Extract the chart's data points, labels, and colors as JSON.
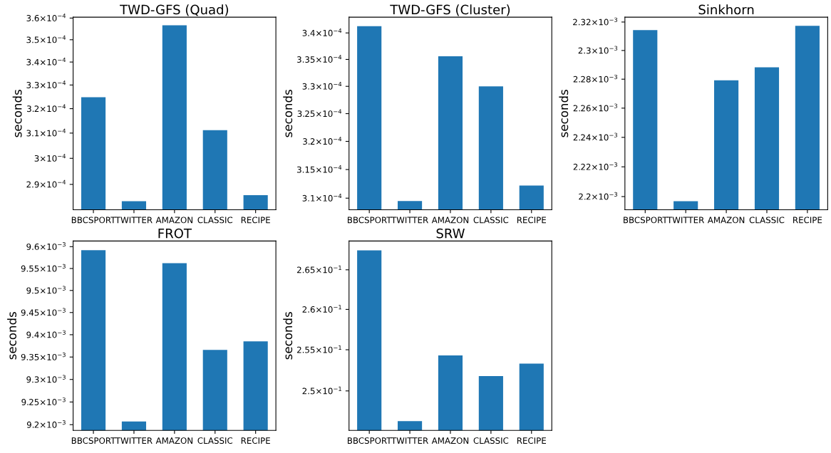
{
  "chart_data": [
    {
      "type": "bar",
      "title": "TWD-GFS (Quad)",
      "ylabel": "seconds",
      "categories": [
        "BBCSPORT",
        "TWITTER",
        "AMAZON",
        "CLASSIC",
        "RECIPE"
      ],
      "values": [
        0.0003248,
        0.0002837,
        0.0003566,
        0.0003112,
        0.000286
      ],
      "color": "#1f77b4",
      "log": true,
      "grid": false,
      "ylim": [
        0.0002806,
        0.0003604
      ],
      "yticks": [
        {
          "value": 0.00029,
          "label": "2.9×10$^{−4}$"
        },
        {
          "value": 0.0003,
          "label": "3×10$^{−4}$"
        },
        {
          "value": 0.00031,
          "label": "3.1×10$^{−4}$"
        },
        {
          "value": 0.00032,
          "label": "3.2×10$^{−4}$"
        },
        {
          "value": 0.00033,
          "label": "3.3×10$^{−4}$"
        },
        {
          "value": 0.00034,
          "label": "3.4×10$^{−4}$"
        },
        {
          "value": 0.00035,
          "label": "3.5×10$^{−4}$"
        },
        {
          "value": 0.00036,
          "label": "3.6×10$^{−4}$"
        }
      ]
    },
    {
      "type": "bar",
      "title": "TWD-GFS (Cluster)",
      "ylabel": "seconds",
      "categories": [
        "BBCSPORT",
        "TWITTER",
        "AMAZON",
        "CLASSIC",
        "RECIPE"
      ],
      "values": [
        0.0003413,
        0.0003095,
        0.0003356,
        0.00033,
        0.0003122
      ],
      "color": "#1f77b4",
      "log": true,
      "grid": false,
      "ylim": [
        0.000308,
        0.000343
      ],
      "yticks": [
        {
          "value": 0.00031,
          "label": "3.1×10$^{−4}$"
        },
        {
          "value": 0.000315,
          "label": "3.15×10$^{−4}$"
        },
        {
          "value": 0.00032,
          "label": "3.2×10$^{−4}$"
        },
        {
          "value": 0.000325,
          "label": "3.25×10$^{−4}$"
        },
        {
          "value": 0.00033,
          "label": "3.3×10$^{−4}$"
        },
        {
          "value": 0.000335,
          "label": "3.35×10$^{−4}$"
        },
        {
          "value": 0.00034,
          "label": "3.4×10$^{−4}$"
        }
      ]
    },
    {
      "type": "bar",
      "title": "Sinkhorn",
      "ylabel": "seconds",
      "categories": [
        "BBCSPORT",
        "TWITTER",
        "AMAZON",
        "CLASSIC",
        "RECIPE"
      ],
      "values": [
        0.0023143,
        0.0021969,
        0.0022792,
        0.0022883,
        0.0023173
      ],
      "color": "#1f77b4",
      "log": true,
      "grid": false,
      "ylim": [
        0.0021912,
        0.0023234
      ],
      "yticks": [
        {
          "value": 0.0022,
          "label": "2.2×10$^{−3}$"
        },
        {
          "value": 0.00222,
          "label": "2.22×10$^{−3}$"
        },
        {
          "value": 0.00224,
          "label": "2.24×10$^{−3}$"
        },
        {
          "value": 0.00226,
          "label": "2.26×10$^{−3}$"
        },
        {
          "value": 0.00228,
          "label": "2.28×10$^{−3}$"
        },
        {
          "value": 0.0023,
          "label": "2.3×10$^{−3}$"
        },
        {
          "value": 0.00232,
          "label": "2.32×10$^{−3}$"
        }
      ]
    },
    {
      "type": "bar",
      "title": "FROT",
      "ylabel": "seconds",
      "categories": [
        "BBCSPORT",
        "TWITTER",
        "AMAZON",
        "CLASSIC",
        "RECIPE"
      ],
      "values": [
        0.009592,
        0.009207,
        0.009562,
        0.009366,
        0.009385
      ],
      "color": "#1f77b4",
      "log": true,
      "grid": false,
      "ylim": [
        0.0091875,
        0.009613
      ],
      "yticks": [
        {
          "value": 0.0092,
          "label": "9.2×10$^{−3}$"
        },
        {
          "value": 0.00925,
          "label": "9.25×10$^{−3}$"
        },
        {
          "value": 0.0093,
          "label": "9.3×10$^{−3}$"
        },
        {
          "value": 0.00935,
          "label": "9.35×10$^{−3}$"
        },
        {
          "value": 0.0094,
          "label": "9.4×10$^{−3}$"
        },
        {
          "value": 0.00945,
          "label": "9.45×10$^{−3}$"
        },
        {
          "value": 0.0095,
          "label": "9.5×10$^{−3}$"
        },
        {
          "value": 0.00955,
          "label": "9.55×10$^{−3}$"
        },
        {
          "value": 0.0096,
          "label": "9.6×10$^{−3}$"
        }
      ]
    },
    {
      "type": "bar",
      "title": "SRW",
      "ylabel": "seconds",
      "categories": [
        "BBCSPORT",
        "TWITTER",
        "AMAZON",
        "CLASSIC",
        "RECIPE"
      ],
      "values": [
        0.2675,
        0.2464,
        0.2543,
        0.2518,
        0.2533
      ],
      "color": "#1f77b4",
      "log": true,
      "grid": false,
      "ylim": [
        0.2453,
        0.2687
      ],
      "yticks": [
        {
          "value": 0.25,
          "label": "2.5×10$^{−1}$"
        },
        {
          "value": 0.255,
          "label": "2.55×10$^{−1}$"
        },
        {
          "value": 0.26,
          "label": "2.6×10$^{−1}$"
        },
        {
          "value": 0.265,
          "label": "2.65×10$^{−1}$"
        }
      ]
    }
  ]
}
